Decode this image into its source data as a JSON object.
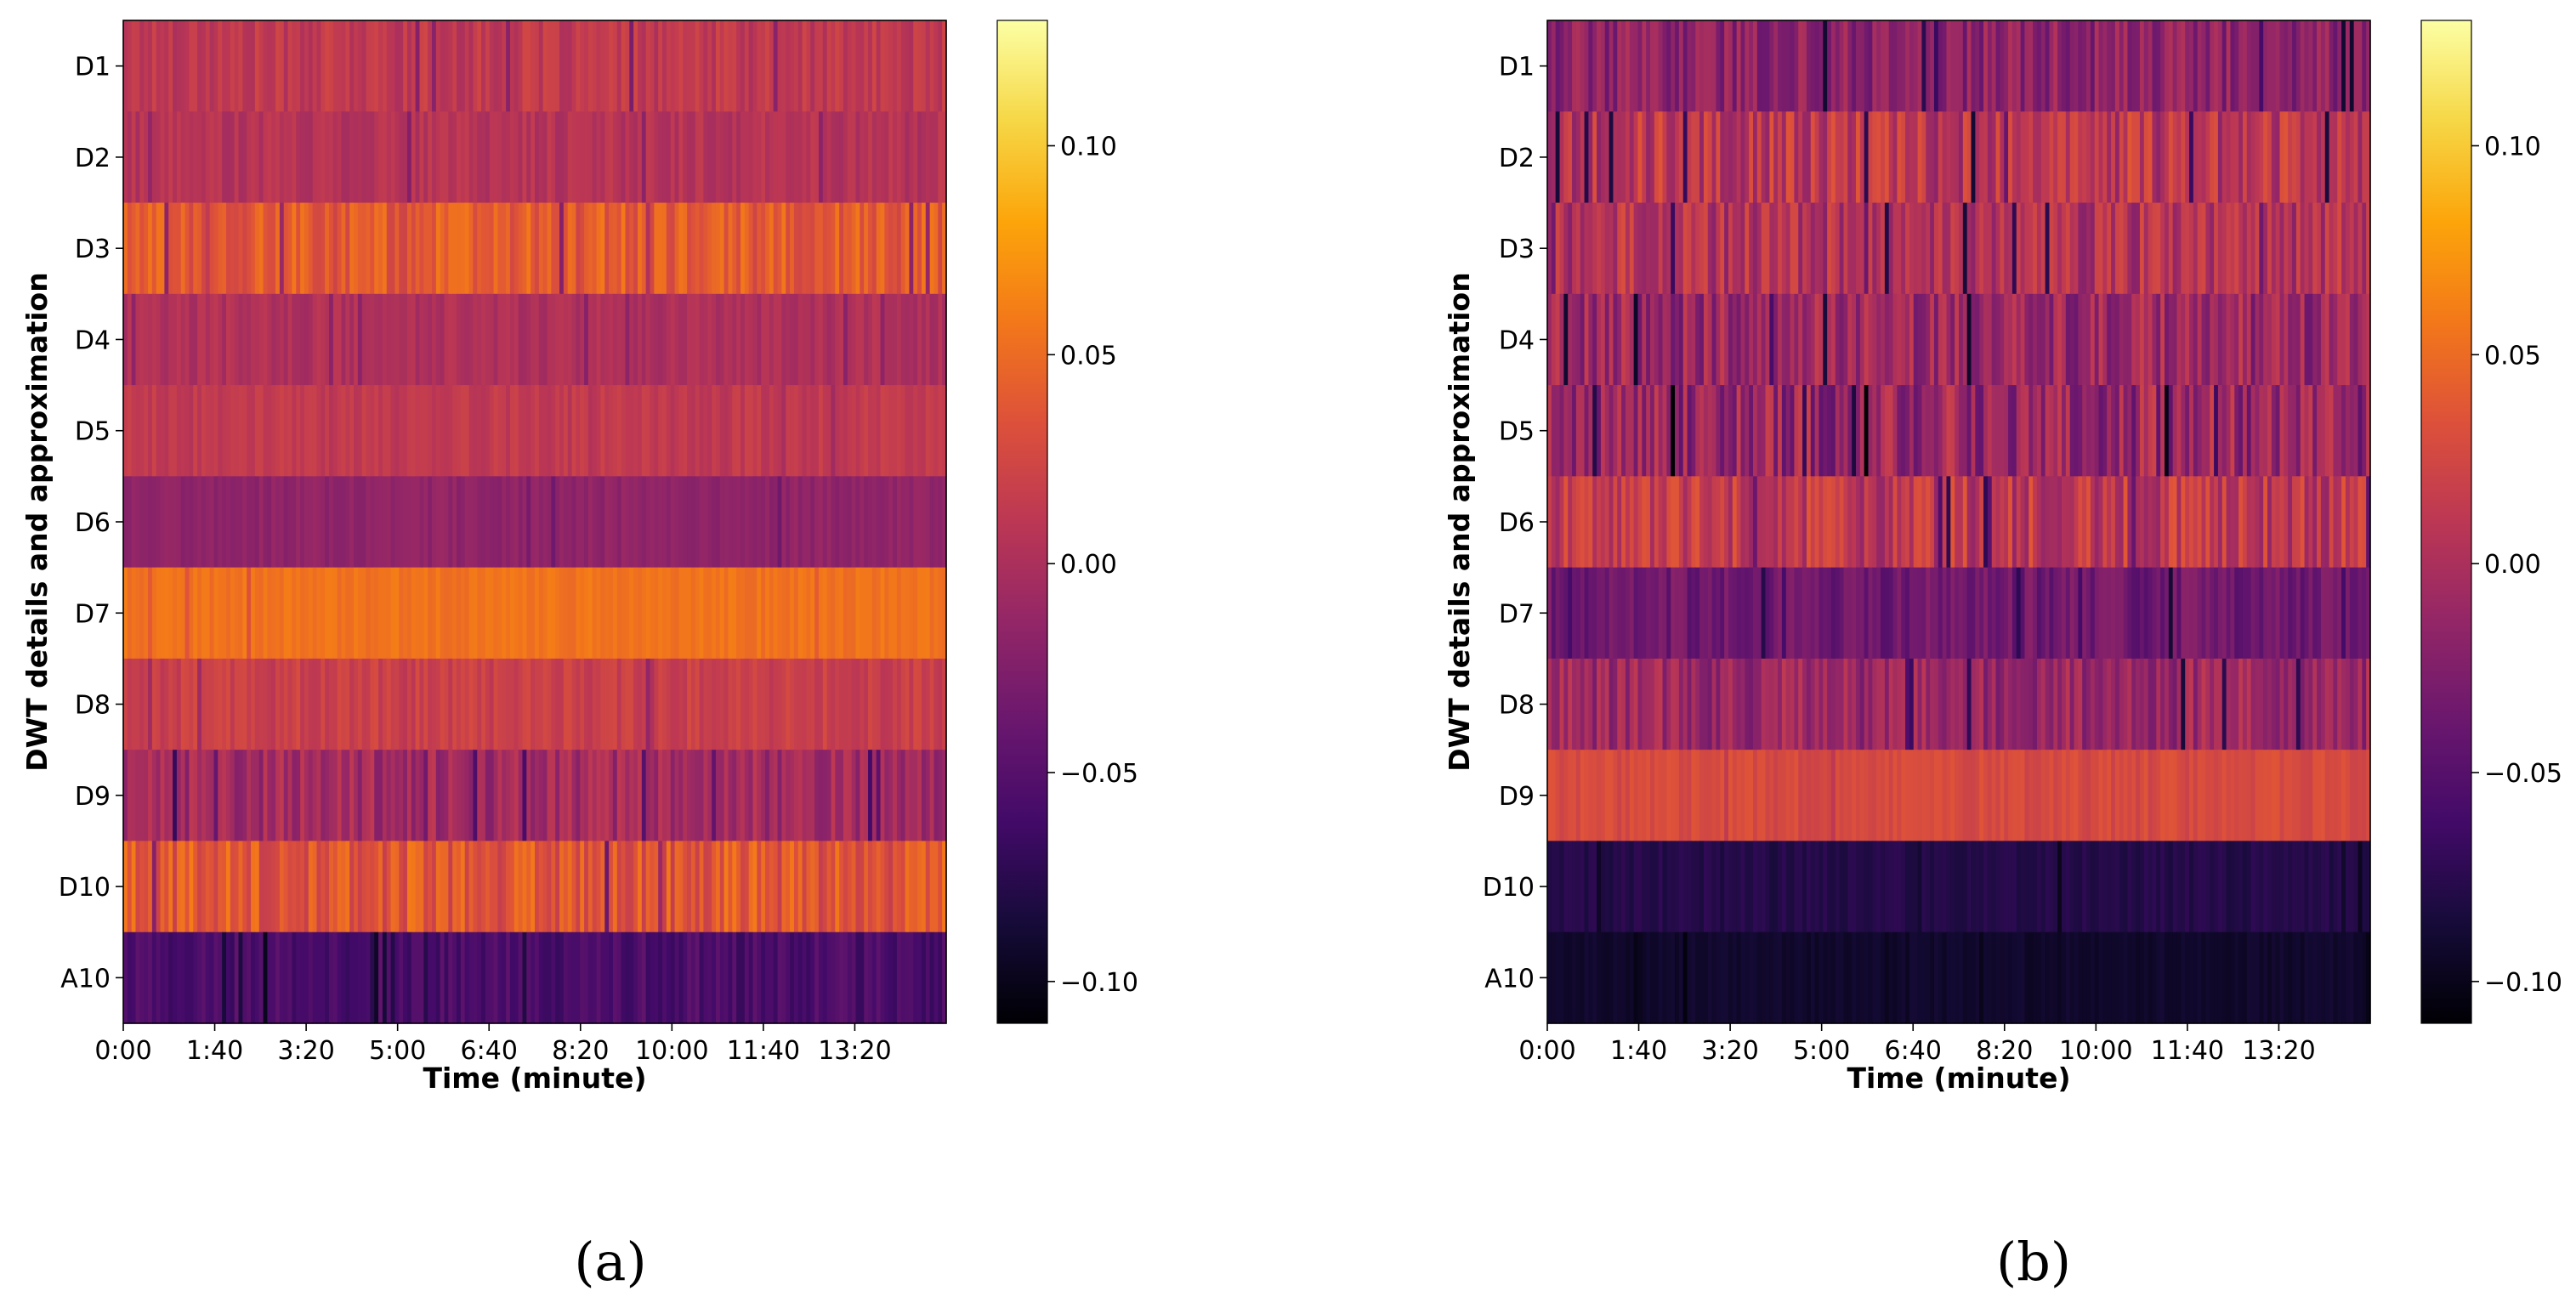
{
  "figure": {
    "panels": [
      {
        "label": "(a)"
      },
      {
        "label": "(b)"
      }
    ]
  },
  "chart_data": [
    {
      "type": "heatmap",
      "panel": "(a)",
      "title": "",
      "xlabel": "Time (minute)",
      "ylabel": "DWT details and approximation",
      "xticks": [
        "0:00",
        "1:40",
        "3:20",
        "5:00",
        "6:40",
        "8:20",
        "10:00",
        "11:40",
        "13:20"
      ],
      "xtick_seconds": [
        0,
        100,
        200,
        300,
        400,
        500,
        600,
        700,
        800
      ],
      "xlim_seconds": [
        0,
        900
      ],
      "rows": [
        "D1",
        "D2",
        "D3",
        "D4",
        "D5",
        "D6",
        "D7",
        "D8",
        "D9",
        "D10",
        "A10"
      ],
      "row_mean": [
        0.012,
        0.006,
        0.04,
        0.002,
        0.013,
        -0.016,
        0.055,
        0.019,
        -0.006,
        0.038,
        -0.056
      ],
      "row_variation": [
        0.012,
        0.01,
        0.018,
        0.009,
        0.008,
        0.006,
        0.006,
        0.01,
        0.018,
        0.022,
        0.012
      ],
      "colormap": "inferno",
      "colorbar": {
        "min": -0.11,
        "max": 0.13,
        "ticks": [
          0.1,
          0.05,
          0.0,
          -0.05,
          -0.1
        ],
        "tick_labels": [
          "0.10",
          "0.05",
          "0.00",
          "−0.05",
          "−0.10"
        ]
      }
    },
    {
      "type": "heatmap",
      "panel": "(b)",
      "title": "",
      "xlabel": "Time (minute)",
      "ylabel": "DWT details and approximation",
      "xticks": [
        "0:00",
        "1:40",
        "3:20",
        "5:00",
        "6:40",
        "8:20",
        "10:00",
        "11:40",
        "13:20"
      ],
      "xtick_seconds": [
        0,
        100,
        200,
        300,
        400,
        500,
        600,
        700,
        800
      ],
      "xlim_seconds": [
        0,
        900
      ],
      "rows": [
        "D1",
        "D2",
        "D3",
        "D4",
        "D5",
        "D6",
        "D7",
        "D8",
        "D9",
        "D10",
        "A10"
      ],
      "row_mean": [
        -0.018,
        0.01,
        0.005,
        -0.01,
        -0.012,
        0.012,
        -0.035,
        -0.01,
        0.028,
        -0.078,
        -0.092
      ],
      "row_variation": [
        0.022,
        0.028,
        0.026,
        0.028,
        0.034,
        0.026,
        0.016,
        0.022,
        0.008,
        0.006,
        0.004
      ],
      "colormap": "inferno",
      "colorbar": {
        "min": -0.11,
        "max": 0.13,
        "ticks": [
          0.1,
          0.05,
          0.0,
          -0.05,
          -0.1
        ],
        "tick_labels": [
          "0.10",
          "0.05",
          "0.00",
          "−0.05",
          "−0.10"
        ]
      }
    }
  ]
}
